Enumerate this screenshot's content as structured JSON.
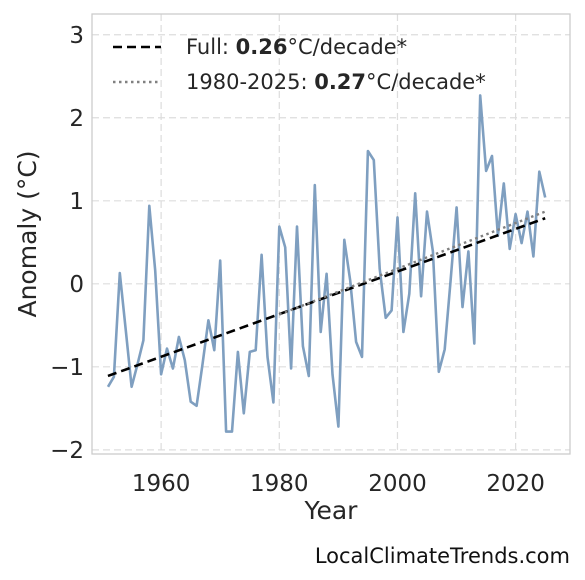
{
  "chart_data": {
    "type": "line",
    "xlabel": "Year",
    "ylabel": "Anomaly (°C)",
    "xlim": [
      1948.3,
      2029.2
    ],
    "ylim": [
      -2.05,
      3.25
    ],
    "xticks": [
      1960,
      1980,
      2000,
      2020
    ],
    "yticks": [
      -2,
      -1,
      0,
      1,
      2,
      3
    ],
    "grid": true,
    "legend_placement": "top-left",
    "colors": {
      "series": "#7f9fc0",
      "full_trend": "#000000",
      "recent_trend": "#808080"
    },
    "series": [
      {
        "x": [
          1951,
          1952,
          1953,
          1954,
          1955,
          1956,
          1957,
          1958,
          1959,
          1960,
          1961,
          1962,
          1963,
          1964,
          1965,
          1966,
          1967,
          1968,
          1969,
          1970,
          1971,
          1972,
          1973,
          1974,
          1975,
          1976,
          1977,
          1978,
          1979,
          1980,
          1981,
          1982,
          1983,
          1984,
          1985,
          1986,
          1987,
          1988,
          1989,
          1990,
          1991,
          1992,
          1993,
          1994,
          1995,
          1996,
          1997,
          1998,
          1999,
          2000,
          2001,
          2002,
          2003,
          2004,
          2005,
          2006,
          2007,
          2008,
          2009,
          2010,
          2011,
          2012,
          2013,
          2014,
          2015,
          2016,
          2017,
          2018,
          2019,
          2020,
          2021,
          2022,
          2023,
          2024,
          2025
        ],
        "values": [
          -1.24,
          -1.12,
          0.13,
          -0.55,
          -1.24,
          -0.97,
          -0.68,
          0.94,
          0.16,
          -1.09,
          -0.78,
          -1.02,
          -0.64,
          -0.92,
          -1.42,
          -1.47,
          -0.97,
          -0.44,
          -0.8,
          0.28,
          -1.78,
          -1.78,
          -0.82,
          -1.56,
          -0.82,
          -0.8,
          0.35,
          -0.88,
          -1.43,
          0.69,
          0.44,
          -1.02,
          0.69,
          -0.75,
          -1.11,
          1.19,
          -0.58,
          0.12,
          -1.09,
          -1.72,
          0.53,
          0.04,
          -0.7,
          -0.88,
          1.6,
          1.49,
          0.18,
          -0.41,
          -0.32,
          0.8,
          -0.58,
          -0.12,
          1.09,
          -0.15,
          0.87,
          0.39,
          -1.06,
          -0.79,
          0.04,
          0.92,
          -0.28,
          0.39,
          -0.72,
          2.27,
          1.36,
          1.54,
          0.58,
          1.21,
          0.42,
          0.84,
          0.49,
          0.87,
          0.33,
          1.35,
          1.04
        ]
      }
    ],
    "trends": [
      {
        "name": "Full",
        "x": [
          1951,
          2025
        ],
        "values": [
          -1.11,
          0.79
        ],
        "style": "dashed"
      },
      {
        "name": "1980-2025",
        "x": [
          1980,
          2025
        ],
        "values": [
          -0.37,
          0.87
        ],
        "style": "dotted"
      }
    ],
    "legend": [
      {
        "prefix": "Full: ",
        "value": "0.26",
        "suffix": "°C/decade*"
      },
      {
        "prefix": "1980-2025: ",
        "value": "0.27",
        "suffix": "°C/decade*"
      }
    ]
  },
  "watermark": "LocalClimateTrends.com"
}
